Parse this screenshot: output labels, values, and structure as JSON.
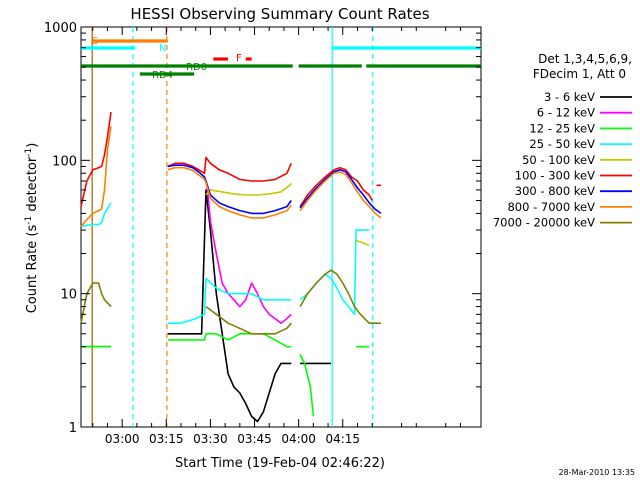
{
  "chart_data": {
    "type": "line",
    "title": "HESSI Observing Summary Count Rates",
    "xlabel": "Start Time (19-Feb-04 02:46:22)",
    "ylabel_main": "Count Rate (s",
    "ylabel_sup1": "-1",
    "ylabel_mid": " detector",
    "ylabel_sup2": "-1",
    "ylabel_end": ")",
    "timestamp": "28-Mar-2010 13:35",
    "y_scale": "log",
    "xlim_min": [
      166,
      302
    ],
    "ylim": [
      1,
      1000
    ],
    "x_ticks": [
      {
        "min": 180,
        "label": "03:00"
      },
      {
        "min": 195,
        "label": "03:15"
      },
      {
        "min": 210,
        "label": "03:30"
      },
      {
        "min": 225,
        "label": "03:45"
      },
      {
        "min": 240,
        "label": "04:00"
      },
      {
        "min": 255,
        "label": "04:15"
      }
    ],
    "y_ticks": [
      {
        "v": 1,
        "label": "1"
      },
      {
        "v": 10,
        "label": "10"
      },
      {
        "v": 100,
        "label": "100"
      },
      {
        "v": 1000,
        "label": "1000"
      }
    ],
    "legend": {
      "header1": "Det 1,3,4,5,6,9,",
      "header2": "FDecim 1, Att 0",
      "placement": "right"
    },
    "series": [
      {
        "name": "3 - 6 keV",
        "color": "#000000",
        "points": [
          [
            168,
            4
          ],
          [
            172,
            4
          ],
          [
            174,
            4
          ],
          [
            176.2,
            4
          ],
          [
            177,
            null
          ],
          [
            195,
            null
          ],
          [
            195.5,
            5
          ],
          [
            200,
            5
          ],
          [
            205,
            5
          ],
          [
            207,
            5
          ],
          [
            208.5,
            60
          ],
          [
            210,
            30
          ],
          [
            212,
            10
          ],
          [
            214,
            5
          ],
          [
            216,
            2.5
          ],
          [
            218,
            2
          ],
          [
            220,
            1.8
          ],
          [
            222,
            1.5
          ],
          [
            224,
            1.2
          ],
          [
            226,
            1.1
          ],
          [
            228,
            1.3
          ],
          [
            230,
            1.8
          ],
          [
            232,
            2.5
          ],
          [
            234,
            3
          ],
          [
            236,
            3
          ],
          [
            237.5,
            3
          ],
          [
            238,
            null
          ],
          [
            240,
            null
          ],
          [
            240.5,
            3
          ],
          [
            245,
            3
          ],
          [
            250,
            3
          ],
          [
            251,
            3
          ],
          [
            251.5,
            null
          ]
        ]
      },
      {
        "name": "6 - 12 keV",
        "color": "#ff00ff",
        "points": [
          [
            208.5,
            70
          ],
          [
            209,
            60
          ],
          [
            210,
            35
          ],
          [
            212,
            20
          ],
          [
            214,
            12
          ],
          [
            216,
            10
          ],
          [
            218,
            9
          ],
          [
            220,
            8
          ],
          [
            222,
            9
          ],
          [
            224,
            12
          ],
          [
            226,
            10
          ],
          [
            228,
            8
          ],
          [
            230,
            7
          ],
          [
            232,
            6.5
          ],
          [
            234,
            6
          ],
          [
            236,
            6.5
          ],
          [
            237.5,
            7
          ],
          [
            238,
            null
          ]
        ]
      },
      {
        "name": "12 - 25 keV",
        "color": "#00ff00",
        "points": [
          [
            166,
            4
          ],
          [
            170,
            4
          ],
          [
            174,
            4
          ],
          [
            176.2,
            4
          ],
          [
            177,
            null
          ],
          [
            195,
            null
          ],
          [
            195.5,
            4.5
          ],
          [
            200,
            4.5
          ],
          [
            205,
            4.5
          ],
          [
            208,
            4.5
          ],
          [
            208.5,
            5
          ],
          [
            212,
            5
          ],
          [
            216,
            4.5
          ],
          [
            220,
            5
          ],
          [
            224,
            5
          ],
          [
            228,
            5
          ],
          [
            232,
            4.5
          ],
          [
            236,
            4
          ],
          [
            237.5,
            4
          ],
          [
            238,
            null
          ],
          [
            240,
            null
          ],
          [
            240.5,
            3.5
          ],
          [
            242,
            3
          ],
          [
            244,
            2
          ],
          [
            245,
            1.2
          ],
          [
            245.5,
            null
          ],
          [
            259,
            null
          ],
          [
            259.5,
            4
          ],
          [
            262,
            4
          ],
          [
            264,
            4
          ],
          [
            264.5,
            null
          ]
        ]
      },
      {
        "name": "25 - 50 keV",
        "color": "#00ffff",
        "points": [
          [
            166,
            32
          ],
          [
            170,
            33
          ],
          [
            172,
            33
          ],
          [
            173,
            34
          ],
          [
            174,
            40
          ],
          [
            176.2,
            48
          ],
          [
            177,
            null
          ],
          [
            195,
            null
          ],
          [
            195.5,
            6
          ],
          [
            200,
            6
          ],
          [
            205,
            6.5
          ],
          [
            208,
            7
          ],
          [
            208.5,
            13
          ],
          [
            212,
            11
          ],
          [
            216,
            10
          ],
          [
            220,
            10
          ],
          [
            224,
            10
          ],
          [
            228,
            9
          ],
          [
            232,
            9
          ],
          [
            236,
            9
          ],
          [
            237.5,
            9
          ],
          [
            238,
            null
          ],
          [
            240,
            null
          ],
          [
            240.5,
            9
          ],
          [
            243,
            10
          ],
          [
            246,
            12
          ],
          [
            249,
            14
          ],
          [
            251,
            13
          ],
          [
            253,
            11
          ],
          [
            255,
            9
          ],
          [
            257,
            8
          ],
          [
            259,
            7
          ],
          [
            259.5,
            30
          ],
          [
            262,
            30
          ],
          [
            264,
            30
          ]
        ]
      },
      {
        "name": "50 - 100 keV",
        "color": "#c8c800",
        "points": [
          [
            208.5,
            55
          ],
          [
            210,
            60
          ],
          [
            214,
            58
          ],
          [
            218,
            56
          ],
          [
            222,
            55
          ],
          [
            226,
            55
          ],
          [
            230,
            56
          ],
          [
            234,
            58
          ],
          [
            237,
            65
          ],
          [
            237.5,
            67
          ],
          [
            238,
            null
          ],
          [
            259.5,
            25
          ],
          [
            262,
            24
          ],
          [
            264,
            23
          ]
        ]
      },
      {
        "name": "100 - 300 keV",
        "color": "#ff0000",
        "points": [
          [
            166,
            45
          ],
          [
            168,
            70
          ],
          [
            170,
            85
          ],
          [
            172,
            88
          ],
          [
            173,
            90
          ],
          [
            174,
            110
          ],
          [
            175,
            150
          ],
          [
            176.2,
            230
          ],
          [
            177,
            null
          ],
          [
            195,
            null
          ],
          [
            195.5,
            90
          ],
          [
            198,
            95
          ],
          [
            201,
            95
          ],
          [
            204,
            90
          ],
          [
            206,
            85
          ],
          [
            208,
            80
          ],
          [
            208.5,
            105
          ],
          [
            210,
            95
          ],
          [
            213,
            85
          ],
          [
            216,
            80
          ],
          [
            220,
            72
          ],
          [
            224,
            70
          ],
          [
            228,
            70
          ],
          [
            232,
            72
          ],
          [
            236,
            80
          ],
          [
            237.5,
            95
          ],
          [
            238,
            null
          ],
          [
            240,
            null
          ],
          [
            240.5,
            45
          ],
          [
            243,
            55
          ],
          [
            246,
            65
          ],
          [
            249,
            75
          ],
          [
            252,
            85
          ],
          [
            254,
            88
          ],
          [
            256,
            85
          ],
          [
            258,
            75
          ],
          [
            260,
            70
          ],
          [
            262,
            60
          ],
          [
            264,
            55
          ],
          [
            265,
            50
          ],
          [
            266,
            null
          ],
          [
            266.5,
            65
          ],
          [
            268,
            65
          ]
        ]
      },
      {
        "name": "300 - 800 keV",
        "color": "#0000ff",
        "points": [
          [
            195.5,
            90
          ],
          [
            198,
            92
          ],
          [
            201,
            92
          ],
          [
            204,
            88
          ],
          [
            206,
            82
          ],
          [
            208,
            75
          ],
          [
            208.5,
            70
          ],
          [
            210,
            55
          ],
          [
            213,
            48
          ],
          [
            216,
            45
          ],
          [
            220,
            42
          ],
          [
            224,
            40
          ],
          [
            228,
            40
          ],
          [
            232,
            42
          ],
          [
            236,
            45
          ],
          [
            237.5,
            50
          ],
          [
            238,
            null
          ],
          [
            240,
            null
          ],
          [
            240.5,
            44
          ],
          [
            243,
            52
          ],
          [
            246,
            62
          ],
          [
            249,
            72
          ],
          [
            252,
            82
          ],
          [
            254,
            85
          ],
          [
            256,
            82
          ],
          [
            258,
            72
          ],
          [
            260,
            62
          ],
          [
            262,
            55
          ],
          [
            264,
            48
          ],
          [
            266,
            43
          ],
          [
            268,
            40
          ]
        ]
      },
      {
        "name": "800 - 7000 keV",
        "color": "#ff8000",
        "points": [
          [
            166,
            32
          ],
          [
            168,
            36
          ],
          [
            170,
            40
          ],
          [
            172,
            42
          ],
          [
            173,
            43
          ],
          [
            174,
            60
          ],
          [
            175,
            120
          ],
          [
            176.2,
            180
          ],
          [
            177,
            null
          ],
          [
            195,
            null
          ],
          [
            195.5,
            85
          ],
          [
            198,
            88
          ],
          [
            201,
            88
          ],
          [
            204,
            84
          ],
          [
            206,
            78
          ],
          [
            208,
            72
          ],
          [
            208.5,
            68
          ],
          [
            210,
            52
          ],
          [
            213,
            45
          ],
          [
            216,
            42
          ],
          [
            220,
            39
          ],
          [
            224,
            37
          ],
          [
            228,
            37
          ],
          [
            232,
            39
          ],
          [
            236,
            42
          ],
          [
            237.5,
            46
          ],
          [
            238,
            null
          ],
          [
            240,
            null
          ],
          [
            240.5,
            42
          ],
          [
            243,
            50
          ],
          [
            246,
            60
          ],
          [
            249,
            70
          ],
          [
            252,
            80
          ],
          [
            254,
            82
          ],
          [
            256,
            78
          ],
          [
            258,
            68
          ],
          [
            260,
            58
          ],
          [
            262,
            50
          ],
          [
            264,
            45
          ],
          [
            266,
            40
          ],
          [
            268,
            37
          ]
        ]
      },
      {
        "name": "7000 - 20000 keV",
        "color": "#808000",
        "points": [
          [
            166,
            6
          ],
          [
            168,
            10
          ],
          [
            170,
            12
          ],
          [
            172,
            12
          ],
          [
            173,
            10
          ],
          [
            174,
            9
          ],
          [
            176.2,
            8
          ],
          [
            177,
            null
          ],
          [
            208.5,
            8
          ],
          [
            212,
            7
          ],
          [
            216,
            6
          ],
          [
            220,
            5.5
          ],
          [
            224,
            5
          ],
          [
            228,
            5
          ],
          [
            232,
            5
          ],
          [
            236,
            5.5
          ],
          [
            237.5,
            6
          ],
          [
            238,
            null
          ],
          [
            240,
            null
          ],
          [
            240.5,
            8
          ],
          [
            243,
            10
          ],
          [
            246,
            12
          ],
          [
            249,
            14
          ],
          [
            251,
            15
          ],
          [
            253,
            14
          ],
          [
            255,
            12
          ],
          [
            257,
            10
          ],
          [
            259,
            8
          ],
          [
            261,
            7
          ],
          [
            264,
            6
          ],
          [
            266,
            6
          ],
          [
            268,
            6
          ]
        ]
      }
    ],
    "state_bars": [
      {
        "label": "S",
        "color": "#ff8000",
        "y": 1,
        "segments": [
          [
            170,
            195.5
          ]
        ]
      },
      {
        "label": "N",
        "color": "#00ffff",
        "y": 2,
        "segments": [
          [
            166,
            184.5
          ],
          [
            251.5,
            302
          ]
        ]
      },
      {
        "label": "F",
        "color": "#ff0000",
        "y": 3,
        "segments": [
          [
            211,
            216
          ],
          [
            222,
            224
          ]
        ]
      },
      {
        "label": "RD0",
        "color": "#008000",
        "y": 4,
        "segments": [
          [
            166,
            238
          ],
          [
            240,
            261.5
          ],
          [
            263,
            302
          ]
        ]
      },
      {
        "label": "RD4",
        "color": "#008000",
        "y": 5,
        "segments": [
          [
            186,
            204.5
          ]
        ]
      }
    ],
    "vlines": [
      {
        "min": 169.8,
        "color": "#a06000",
        "dash": false
      },
      {
        "min": 183.7,
        "color": "#00ffff",
        "dash": true
      },
      {
        "min": 195.2,
        "color": "#ff8000",
        "dash": true
      },
      {
        "min": 251.4,
        "color": "#00ffff",
        "dash": false
      },
      {
        "min": 265.2,
        "color": "#00ffff",
        "dash": true
      }
    ]
  }
}
